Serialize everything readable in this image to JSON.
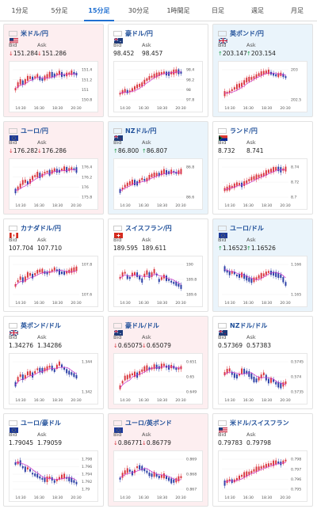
{
  "tabs": [
    {
      "label": "1分足",
      "active": false
    },
    {
      "label": "5分足",
      "active": false
    },
    {
      "label": "15分足",
      "active": true
    },
    {
      "label": "30分足",
      "active": false
    },
    {
      "label": "1時間足",
      "active": false
    },
    {
      "label": "日足",
      "active": false
    },
    {
      "label": "週足",
      "active": false
    },
    {
      "label": "月足",
      "active": false
    }
  ],
  "quote_labels": {
    "bid": "Bid",
    "ask": "Ask"
  },
  "colors": {
    "down_bg": "#fdeef0",
    "up_bg": "#eaf4fb",
    "flat_bg": "#ffffff",
    "candle_up": "#d9363e",
    "candle_down": "#2b3fa6",
    "ma": "#cc33cc",
    "arrow_down": "#d9363e",
    "arrow_up": "#1e9e4a",
    "link": "#1f4f99",
    "tab_active": "#1f6fd1"
  },
  "cards": [
    {
      "pair": "米ドル/円",
      "flag": "us",
      "trend": "down",
      "bid": "151.284",
      "ask": "151.286",
      "yticks": [
        "151.4",
        "151.2",
        "151",
        "150.8"
      ],
      "xticks": [
        "14:30",
        "16:30",
        "18:30",
        "20:30"
      ]
    },
    {
      "pair": "豪ドル/円",
      "flag": "au",
      "trend": "flat",
      "bid": "98.452",
      "ask": "98.457",
      "yticks": [
        "98.4",
        "98.2",
        "98",
        "97.8"
      ],
      "xticks": [
        "14:30",
        "16:30",
        "18:30",
        "20:30"
      ]
    },
    {
      "pair": "英ポンド/円",
      "flag": "gb",
      "trend": "up",
      "bid": "203.147",
      "ask": "203.154",
      "yticks": [
        "203",
        "202.5"
      ],
      "xticks": [
        "14:30",
        "16:30",
        "18:30",
        "20:30"
      ]
    },
    {
      "pair": "ユーロ/円",
      "flag": "eu",
      "trend": "down",
      "bid": "176.282",
      "ask": "176.286",
      "yticks": [
        "176.4",
        "176.2",
        "176",
        "175.8"
      ],
      "xticks": [
        "14:30",
        "16:30",
        "18:30",
        "20:30"
      ]
    },
    {
      "pair": "NZドル/円",
      "flag": "nz",
      "trend": "up",
      "bid": "86.800",
      "ask": "86.807",
      "yticks": [
        "86.8",
        "86.6"
      ],
      "xticks": [
        "14:30",
        "16:30",
        "18:30",
        "20:30"
      ]
    },
    {
      "pair": "ランド/円",
      "flag": "za",
      "trend": "flat",
      "bid": "8.732",
      "ask": "8.741",
      "yticks": [
        "8.74",
        "8.72",
        "8.7"
      ],
      "xticks": [
        "14:30",
        "16:30",
        "18:30",
        "20:30"
      ]
    },
    {
      "pair": "カナダドル/円",
      "flag": "ca",
      "trend": "flat",
      "bid": "107.704",
      "ask": "107.710",
      "yticks": [
        "107.8",
        "107.6"
      ],
      "xticks": [
        "14:30",
        "16:30",
        "18:30",
        "20:30"
      ]
    },
    {
      "pair": "スイスフラン/円",
      "flag": "ch",
      "trend": "flat",
      "bid": "189.595",
      "ask": "189.611",
      "yticks": [
        "190",
        "189.8",
        "189.6"
      ],
      "xticks": [
        "14:30",
        "16:30",
        "18:30",
        "20:30"
      ]
    },
    {
      "pair": "ユーロ/ドル",
      "flag": "eu",
      "trend": "up",
      "bid": "1.16523",
      "ask": "1.16526",
      "yticks": [
        "1.166",
        "1.165"
      ],
      "xticks": [
        "14:30",
        "16:30",
        "18:30",
        "20:30"
      ]
    },
    {
      "pair": "英ポンド/ドル",
      "flag": "gb",
      "trend": "flat",
      "bid": "1.34276",
      "ask": "1.34286",
      "yticks": [
        "1.344",
        "1.342"
      ],
      "xticks": [
        "14:30",
        "16:30",
        "18:30",
        "20:30"
      ]
    },
    {
      "pair": "豪ドル/ドル",
      "flag": "au",
      "trend": "down",
      "bid": "0.65075",
      "ask": "0.65079",
      "yticks": [
        "0.651",
        "0.65",
        "0.649"
      ],
      "xticks": [
        "14:30",
        "16:30",
        "18:30",
        "20:30"
      ]
    },
    {
      "pair": "NZドル/ドル",
      "flag": "nz",
      "trend": "flat",
      "bid": "0.57369",
      "ask": "0.57383",
      "yticks": [
        "0.5745",
        "0.574",
        "0.5735"
      ],
      "xticks": [
        "14:30",
        "16:30",
        "18:30",
        "20:30"
      ]
    },
    {
      "pair": "ユーロ/豪ドル",
      "flag": "eu",
      "trend": "flat",
      "bid": "1.79045",
      "ask": "1.79059",
      "yticks": [
        "1.798",
        "1.796",
        "1.794",
        "1.792",
        "1.79"
      ],
      "xticks": [
        "14:30",
        "16:30",
        "18:30",
        "20:30"
      ]
    },
    {
      "pair": "ユーロ/英ポンド",
      "flag": "eu",
      "trend": "down",
      "bid": "0.86771",
      "ask": "0.86779",
      "yticks": [
        "0.869",
        "0.868",
        "0.867"
      ],
      "xticks": [
        "14:30",
        "16:30",
        "18:30",
        "20:30"
      ]
    },
    {
      "pair": "米ドル/スイスフラン",
      "flag": "us",
      "trend": "flat",
      "bid": "0.79783",
      "ask": "0.79798",
      "yticks": [
        "0.798",
        "0.797",
        "0.796",
        "0.795"
      ],
      "xticks": [
        "14:30",
        "16:30",
        "18:30",
        "20:30"
      ]
    }
  ]
}
